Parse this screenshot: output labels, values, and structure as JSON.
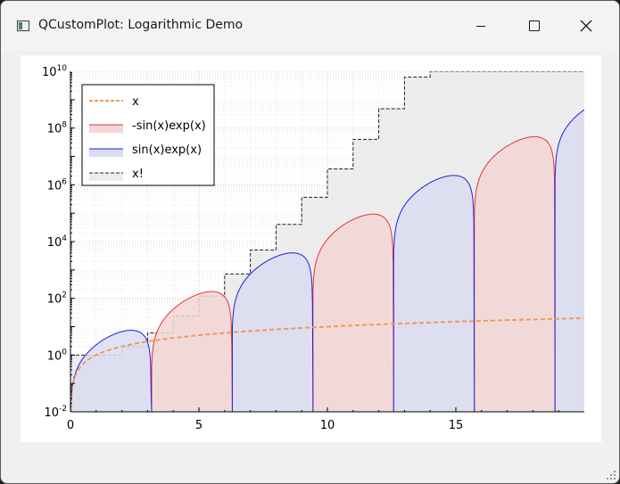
{
  "window": {
    "title": "QCustomPlot: Logarithmic Demo",
    "icons": [
      "app-icon",
      "minimize-icon",
      "maximize-icon",
      "close-icon"
    ]
  },
  "chart_data": {
    "type": "line",
    "x_axis": {
      "range": [
        0,
        20
      ],
      "ticks": [
        "0",
        "5",
        "10",
        "15"
      ],
      "tick_values": [
        0,
        5,
        10,
        15
      ]
    },
    "y_axis": {
      "scale": "log",
      "range": [
        0.01,
        10000000000
      ],
      "tick_values": [
        0.01,
        1,
        100,
        10000,
        1000000,
        100000000,
        10000000000
      ],
      "tick_labels": [
        {
          "base": "10",
          "exp": "-2"
        },
        {
          "base": "10",
          "exp": "0"
        },
        {
          "base": "10",
          "exp": "2"
        },
        {
          "base": "10",
          "exp": "4"
        },
        {
          "base": "10",
          "exp": "6"
        },
        {
          "base": "10",
          "exp": "8"
        },
        {
          "base": "10",
          "exp": "10"
        }
      ]
    },
    "grid": true,
    "legend_position": "top-left",
    "series": [
      {
        "name": "x",
        "formula": "x",
        "color": "#f19b58",
        "style": "dashed",
        "fill": "none"
      },
      {
        "name": "-sin(x)exp(x)",
        "formula": "-sin(x)*exp(x)",
        "color": "#ee3030",
        "style": "solid",
        "fill": "#f3d6d6"
      },
      {
        "name": " sin(x)exp(x)",
        "formula": "sin(x)*exp(x)",
        "color": "#2020dd",
        "style": "solid",
        "fill": "#dadcf0"
      },
      {
        "name": "x!",
        "formula": "factorial(floor(x))",
        "color": "#222222",
        "style": "dashed",
        "fill": "#ececec"
      }
    ]
  }
}
